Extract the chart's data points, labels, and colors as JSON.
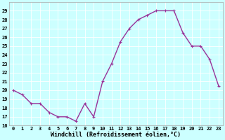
{
  "x": [
    0,
    1,
    2,
    3,
    4,
    5,
    6,
    7,
    8,
    9,
    10,
    11,
    12,
    13,
    14,
    15,
    16,
    17,
    18,
    19,
    20,
    21,
    22,
    23
  ],
  "y": [
    20,
    19.5,
    18.5,
    18.5,
    17.5,
    17.0,
    17.0,
    16.5,
    18.5,
    17.0,
    21.0,
    23.0,
    25.5,
    27.0,
    28.0,
    28.5,
    29.0,
    29.0,
    29.0,
    26.5,
    25.0,
    25.0,
    23.5,
    20.5
  ],
  "line_color": "#993399",
  "marker": "+",
  "marker_size": 3,
  "bg_color": "#ccffff",
  "grid_color": "#ffffff",
  "xlabel": "Windchill (Refroidissement éolien,°C)",
  "ylabel": "",
  "ylim": [
    16,
    30
  ],
  "xlim": [
    -0.5,
    23.5
  ],
  "yticks": [
    16,
    17,
    18,
    19,
    20,
    21,
    22,
    23,
    24,
    25,
    26,
    27,
    28,
    29
  ],
  "xticks": [
    0,
    1,
    2,
    3,
    4,
    5,
    6,
    7,
    8,
    9,
    10,
    11,
    12,
    13,
    14,
    15,
    16,
    17,
    18,
    19,
    20,
    21,
    22,
    23
  ],
  "tick_fontsize": 5.0,
  "xlabel_fontsize": 6.0,
  "line_width": 1.0,
  "spine_color": "#aaaaaa"
}
